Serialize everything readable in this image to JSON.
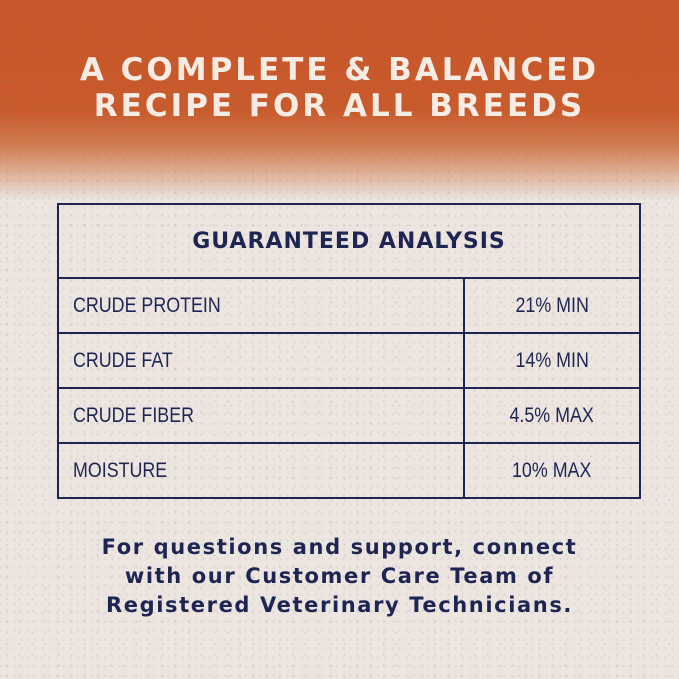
{
  "headline": {
    "line1": "A COMPLETE & BALANCED",
    "line2": "RECIPE FOR ALL BREEDS"
  },
  "analysis": {
    "title": "GUARANTEED ANALYSIS",
    "rows": [
      {
        "label": "CRUDE PROTEIN",
        "value": "21% MIN"
      },
      {
        "label": "CRUDE FAT",
        "value": "14% MIN"
      },
      {
        "label": "CRUDE FIBER",
        "value": "4.5% MAX"
      },
      {
        "label": "MOISTURE",
        "value": "10% MAX"
      }
    ]
  },
  "footer": {
    "line1": "For questions and support, connect",
    "line2": "with our Customer Care Team of",
    "line3": "Registered Veterinary Technicians."
  },
  "colors": {
    "accent": "#c8562a",
    "navy": "#1e2552",
    "background": "#ece5e0"
  }
}
